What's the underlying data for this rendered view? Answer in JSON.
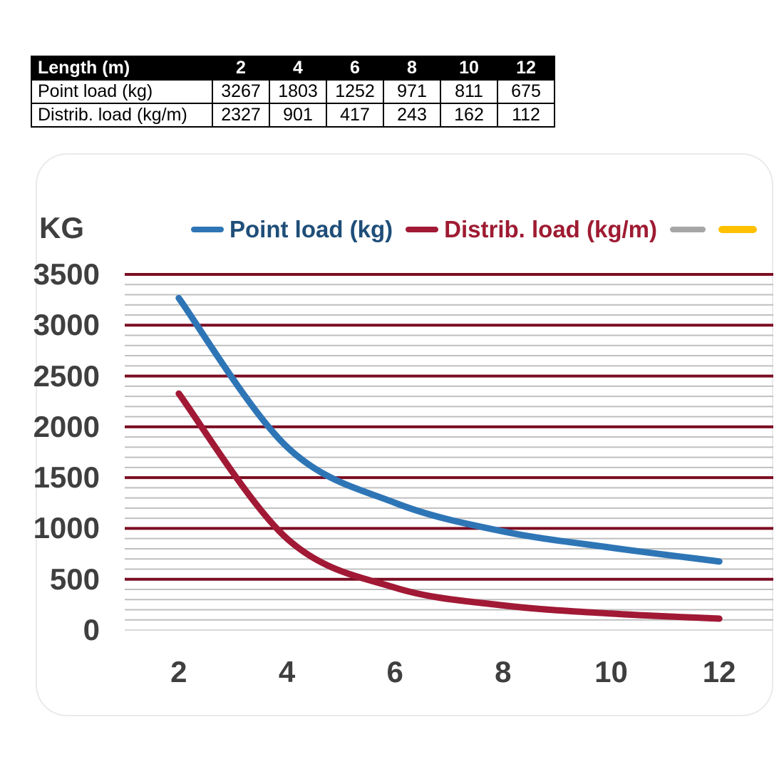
{
  "table": {
    "header_label": "Length (m)",
    "header_columns": [
      "2",
      "4",
      "6",
      "8",
      "10",
      "12"
    ],
    "rows": [
      {
        "label": "Point load (kg)",
        "values": [
          "3267",
          "1803",
          "1252",
          "971",
          "811",
          "675"
        ]
      },
      {
        "label": "Distrib. load (kg/m)",
        "values": [
          "2327",
          "901",
          "417",
          "243",
          "162",
          "112"
        ]
      }
    ]
  },
  "chart_data": {
    "type": "line",
    "title": "KG",
    "categories": [
      "2",
      "4",
      "6",
      "8",
      "10",
      "12"
    ],
    "xlabel": "",
    "ylabel": "KG",
    "ylim": [
      0,
      3500
    ],
    "ytick_step": 500,
    "yminor_step": 100,
    "yticks": [
      "3500",
      "3000",
      "2500",
      "2000",
      "1500",
      "1000",
      "500",
      "0"
    ],
    "grid": {
      "major_color": "#7B0D23",
      "minor_color": "#BFBFBF",
      "zero_line_color": "#D9D9D9",
      "minor_on": true
    },
    "legend_position": "top",
    "smooth_lines": true,
    "series": [
      {
        "name": "Point load (kg)",
        "line_color": "#2E75B6",
        "label_color": "#1F4E79",
        "values": [
          3267,
          1803,
          1252,
          971,
          811,
          675
        ]
      },
      {
        "name": "Distrib. load (kg/m)",
        "line_color": "#A11935",
        "label_color": "#9E1B32",
        "values": [
          2327,
          901,
          417,
          243,
          162,
          112
        ]
      },
      {
        "name": "",
        "line_color": "#A6A6A6",
        "label_color": "#A6A6A6",
        "values": []
      },
      {
        "name": "",
        "line_color": "#FFC000",
        "label_color": "#FFC000",
        "values": []
      }
    ]
  }
}
